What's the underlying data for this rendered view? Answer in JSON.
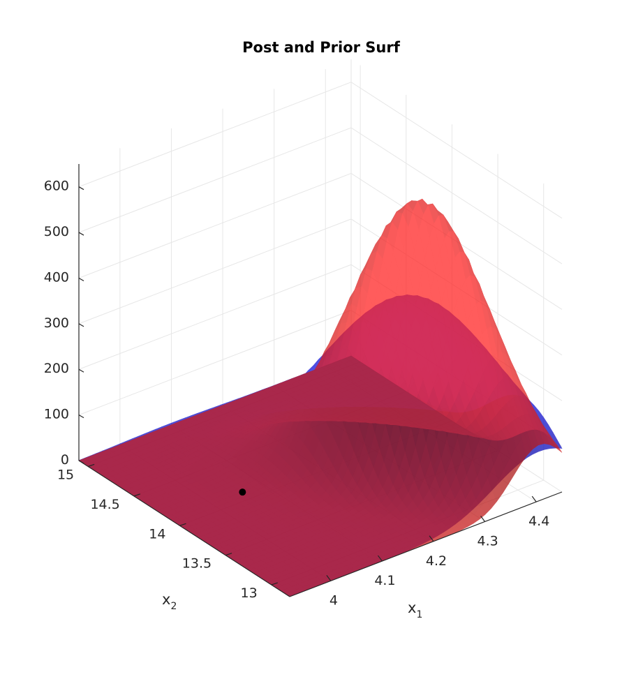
{
  "chart_data": {
    "type": "surface3d",
    "title": "Post and Prior Surf",
    "xlabel": "x",
    "xlabel_sub": "1",
    "ylabel": "x",
    "ylabel_sub": "2",
    "zlabel": "",
    "x_ticks": [
      "4",
      "4.1",
      "4.2",
      "4.3",
      "4.4"
    ],
    "x_tick_values": [
      4.0,
      4.1,
      4.2,
      4.3,
      4.4
    ],
    "y_ticks": [
      "13",
      "13.5",
      "14",
      "14.5",
      "15"
    ],
    "y_tick_values": [
      13.0,
      13.5,
      14.0,
      14.5,
      15.0
    ],
    "z_ticks": [
      "0",
      "100",
      "200",
      "300",
      "400",
      "500",
      "600"
    ],
    "z_tick_values": [
      0,
      100,
      200,
      300,
      400,
      500,
      600
    ],
    "xlim": [
      3.92,
      4.45
    ],
    "ylim": [
      12.8,
      15.1
    ],
    "zlim": [
      0,
      650
    ],
    "grid": true,
    "series": [
      {
        "color": "#1f1fe0",
        "opacity": 0.78,
        "peak": {
          "x1": 4.3,
          "x2": 13.6,
          "z": 390
        },
        "sigma": [
          0.11,
          0.5
        ],
        "rho": -0.6
      },
      {
        "color": "#e01f1f",
        "opacity": 0.74,
        "peak": {
          "x1": 4.31,
          "x2": 13.55,
          "z": 605
        },
        "sigma": [
          0.075,
          0.42
        ],
        "rho": -0.72
      }
    ],
    "marker": {
      "x1": 4.06,
      "x2": 14.1,
      "z": 0,
      "color": "#000000"
    }
  }
}
